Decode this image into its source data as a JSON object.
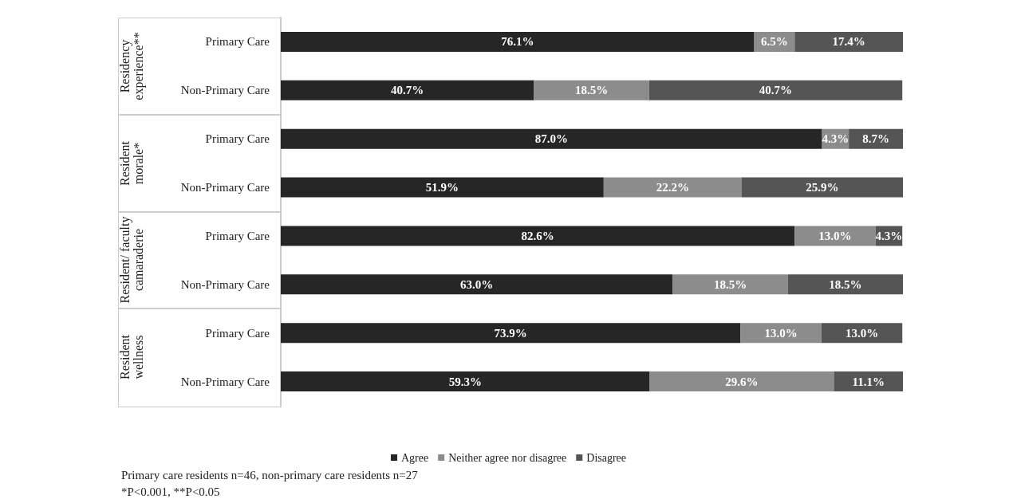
{
  "chart_data": {
    "type": "bar",
    "orientation": "horizontal",
    "stacked": true,
    "legend": "bottom",
    "categories": [
      "Primary Care",
      "Non-Primary Care",
      "Primary Care",
      "Non-Primary Care",
      "Primary Care",
      "Non-Primary Care",
      "Primary Care",
      "Non-Primary Care"
    ],
    "series": [
      {
        "name": "Agree",
        "color": "#262626",
        "values": [
          76.1,
          40.7,
          87.0,
          51.9,
          82.6,
          63.0,
          73.9,
          59.3
        ],
        "value_labels": [
          "76.1%",
          "40.7%",
          "87.0%",
          "51.9%",
          "82.6%",
          "63.0%",
          "73.9%",
          "59.3%"
        ]
      },
      {
        "name": "Neither agree nor disagree",
        "color": "#8c8c8c",
        "values": [
          6.5,
          18.5,
          4.3,
          22.2,
          13.0,
          18.5,
          13.0,
          29.6
        ],
        "value_labels": [
          "6.5%",
          "18.5%",
          "4.3%",
          "22.2%",
          "13.0%",
          "18.5%",
          "13.0%",
          "29.6%"
        ]
      },
      {
        "name": "Disagree",
        "color": "#555555",
        "values": [
          17.4,
          40.7,
          8.7,
          25.9,
          4.3,
          18.5,
          13.0,
          11.1
        ],
        "value_labels": [
          "17.4%",
          "40.7%",
          "8.7%",
          "25.9%",
          "4.3%",
          "18.5%",
          "13.0%",
          "11.1%"
        ]
      }
    ],
    "annotations": [
      "Residency experience**",
      "Resident morale*",
      "Resident/ faculty camaraderie",
      "Resident wellness",
      "Primary care residents n=46, non-primary care residents n=27",
      "*P<0.001, **P<0.05"
    ]
  }
}
